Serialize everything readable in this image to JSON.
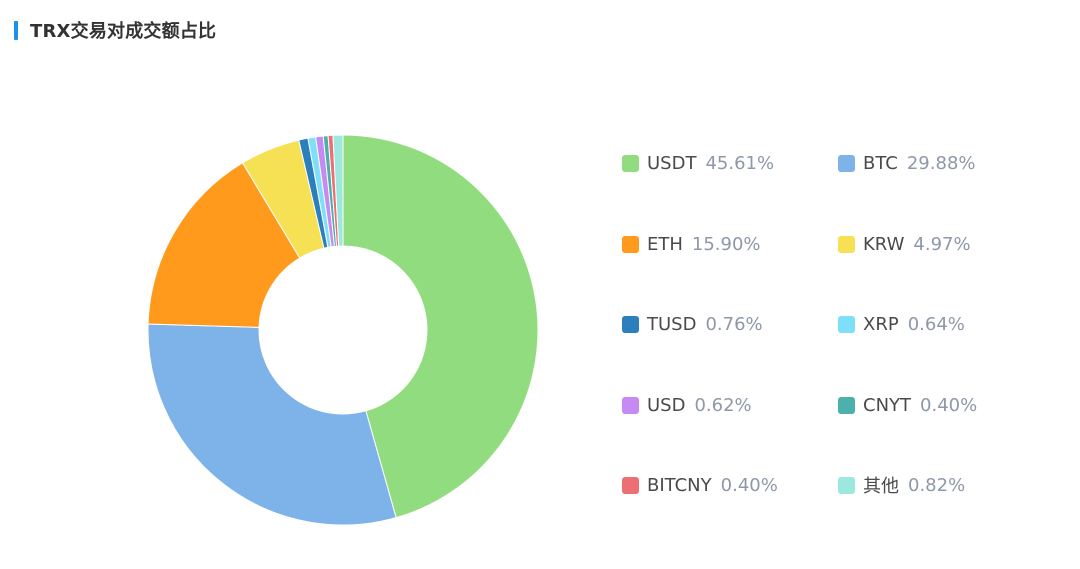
{
  "header": {
    "title": "TRX交易对成交额占比"
  },
  "chart_data": {
    "type": "pie",
    "style": "donut",
    "title": "TRX交易对成交额占比",
    "legend_position": "right",
    "series": [
      {
        "name": "USDT",
        "label": "45.61%",
        "value": 45.61,
        "color": "#91dc7e"
      },
      {
        "name": "BTC",
        "label": "29.88%",
        "value": 29.88,
        "color": "#7eb3ea"
      },
      {
        "name": "ETH",
        "label": "15.90%",
        "value": 15.9,
        "color": "#ff9a1c"
      },
      {
        "name": "KRW",
        "label": "4.97%",
        "value": 4.97,
        "color": "#f6e053"
      },
      {
        "name": "TUSD",
        "label": "0.76%",
        "value": 0.76,
        "color": "#2b7fbd"
      },
      {
        "name": "XRP",
        "label": "0.64%",
        "value": 0.64,
        "color": "#7ee0f8"
      },
      {
        "name": "USD",
        "label": "0.62%",
        "value": 0.62,
        "color": "#c58af3"
      },
      {
        "name": "CNYT",
        "label": "0.40%",
        "value": 0.4,
        "color": "#4cb0ad"
      },
      {
        "name": "BITCNY",
        "label": "0.40%",
        "value": 0.4,
        "color": "#ee6f73"
      },
      {
        "name": "其他",
        "label": "0.82%",
        "value": 0.82,
        "color": "#9ce7de"
      }
    ]
  }
}
